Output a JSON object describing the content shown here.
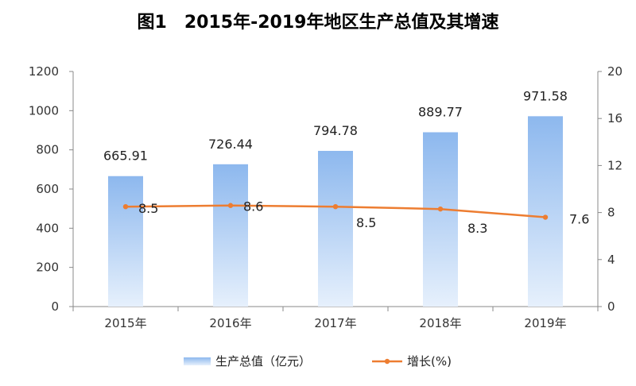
{
  "title": "图1　2015年-2019年地区生产总值及其增速",
  "chart_data": {
    "type": "bar+line",
    "title": "图1　2015年-2019年地区生产总值及其增速",
    "categories": [
      "2015年",
      "2016年",
      "2017年",
      "2018年",
      "2019年"
    ],
    "series": [
      {
        "name": "生产总值（亿元）",
        "type": "bar",
        "axis": "left",
        "values": [
          665.91,
          726.44,
          794.78,
          889.77,
          971.58
        ],
        "labels": [
          "665.91",
          "726.44",
          "794.78",
          "889.77",
          "971.58"
        ],
        "color": "#8db8ee"
      },
      {
        "name": "增长(%)",
        "type": "line",
        "axis": "right",
        "values": [
          8.5,
          8.6,
          8.5,
          8.3,
          7.6
        ],
        "labels": [
          "8.5",
          "8.6",
          "8.5",
          "8.3",
          "7.6"
        ],
        "color": "#ed7d31"
      }
    ],
    "y_left": {
      "min": 0,
      "max": 1200,
      "ticks": [
        "0",
        "200",
        "400",
        "600",
        "800",
        "1000",
        "1200"
      ]
    },
    "y_right": {
      "min": 0,
      "max": 20,
      "ticks": [
        "0",
        "4",
        "8",
        "12",
        "16",
        "20"
      ]
    },
    "legend": {
      "position": "bottom",
      "items": [
        "生产总值（亿元）",
        "增长(%)"
      ]
    },
    "grid": false
  }
}
